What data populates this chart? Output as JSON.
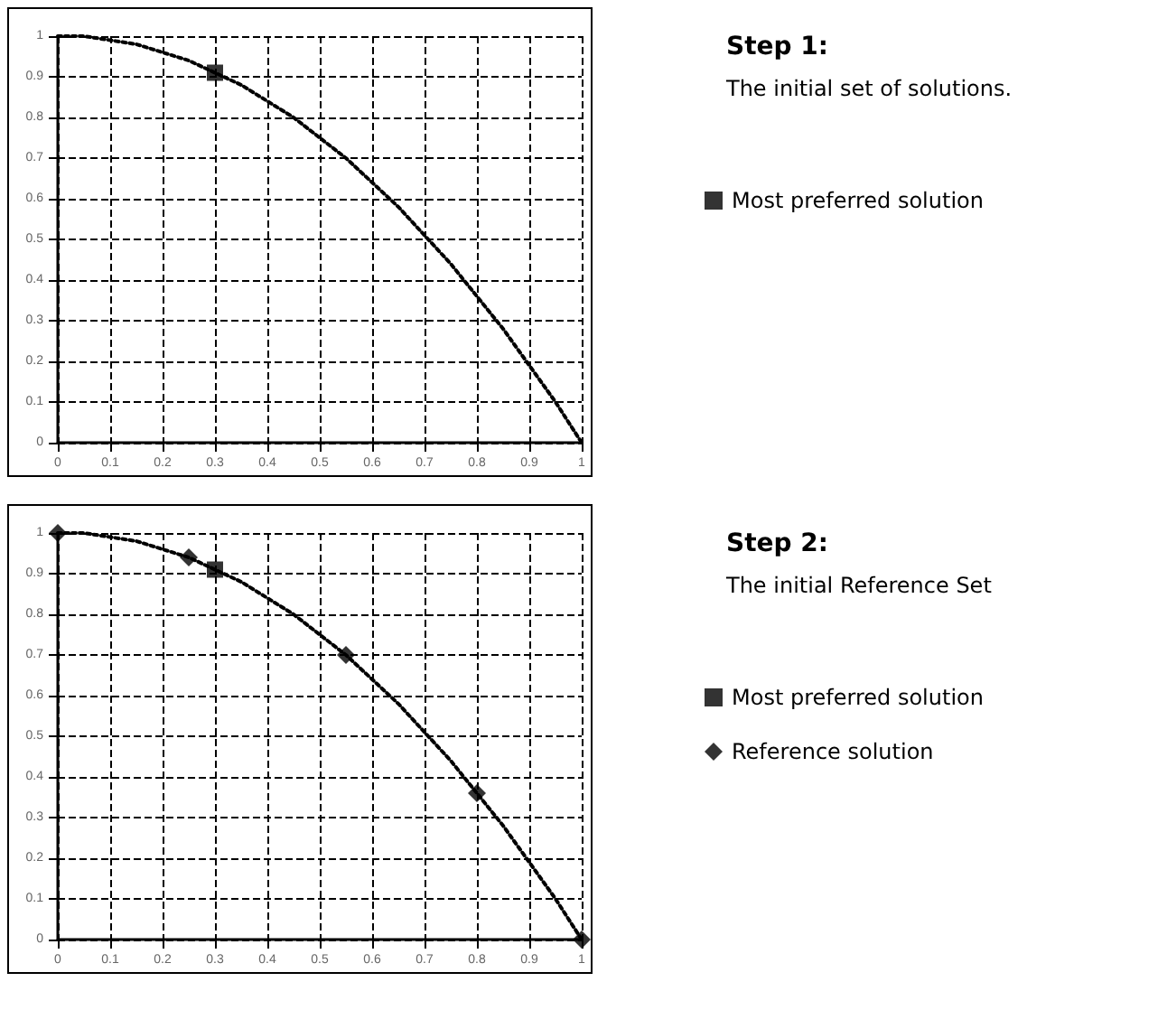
{
  "chart_data": [
    {
      "type": "line",
      "annotations": [
        "Step 1:",
        "The initial set of solutions."
      ],
      "xlim": [
        0,
        1
      ],
      "ylim": [
        0,
        1
      ],
      "xticks": [
        0,
        0.1,
        0.2,
        0.3,
        0.4,
        0.5,
        0.6,
        0.7,
        0.8,
        0.9,
        1
      ],
      "yticks": [
        0,
        0.1,
        0.2,
        0.3,
        0.4,
        0.5,
        0.6,
        0.7,
        0.8,
        0.9,
        1
      ],
      "grid": true,
      "legend": "right",
      "series": [
        {
          "color": "#000000",
          "line_style": "dotted",
          "marker": "none",
          "x": [
            0,
            0.05,
            0.1,
            0.15,
            0.2,
            0.25,
            0.3,
            0.35,
            0.4,
            0.45,
            0.5,
            0.55,
            0.6,
            0.65,
            0.7,
            0.75,
            0.8,
            0.85,
            0.9,
            0.95,
            1
          ],
          "values": [
            1,
            1,
            0.99,
            0.98,
            0.96,
            0.94,
            0.91,
            0.88,
            0.84,
            0.8,
            0.75,
            0.7,
            0.64,
            0.58,
            0.51,
            0.44,
            0.36,
            0.28,
            0.19,
            0.1,
            0
          ]
        },
        {
          "type": "scatter",
          "name": "Most preferred solution",
          "color": "#000000",
          "marker": "square",
          "x": [
            0.3
          ],
          "values": [
            0.91
          ]
        }
      ]
    },
    {
      "type": "line",
      "annotations": [
        "Step 2:",
        "The initial Reference Set"
      ],
      "xlim": [
        0,
        1
      ],
      "ylim": [
        0,
        1
      ],
      "xticks": [
        0,
        0.1,
        0.2,
        0.3,
        0.4,
        0.5,
        0.6,
        0.7,
        0.8,
        0.9,
        1
      ],
      "yticks": [
        0,
        0.1,
        0.2,
        0.3,
        0.4,
        0.5,
        0.6,
        0.7,
        0.8,
        0.9,
        1
      ],
      "grid": true,
      "legend": "right",
      "series": [
        {
          "color": "#000000",
          "line_style": "dotted",
          "marker": "none",
          "x": [
            0,
            0.05,
            0.1,
            0.15,
            0.2,
            0.25,
            0.3,
            0.35,
            0.4,
            0.45,
            0.5,
            0.55,
            0.6,
            0.65,
            0.7,
            0.75,
            0.8,
            0.85,
            0.9,
            0.95,
            1
          ],
          "values": [
            1,
            1,
            0.99,
            0.98,
            0.96,
            0.94,
            0.91,
            0.88,
            0.84,
            0.8,
            0.75,
            0.7,
            0.64,
            0.58,
            0.51,
            0.44,
            0.36,
            0.28,
            0.19,
            0.1,
            0
          ]
        },
        {
          "type": "scatter",
          "name": "Most preferred solution",
          "color": "#000000",
          "marker": "square",
          "x": [
            0.3
          ],
          "values": [
            0.91
          ]
        },
        {
          "type": "scatter",
          "name": "Reference solution",
          "color": "#000000",
          "marker": "diamond",
          "x": [
            0,
            0.25,
            0.55,
            0.8,
            1
          ],
          "values": [
            1,
            0.94,
            0.7,
            0.36,
            0
          ]
        }
      ]
    }
  ]
}
